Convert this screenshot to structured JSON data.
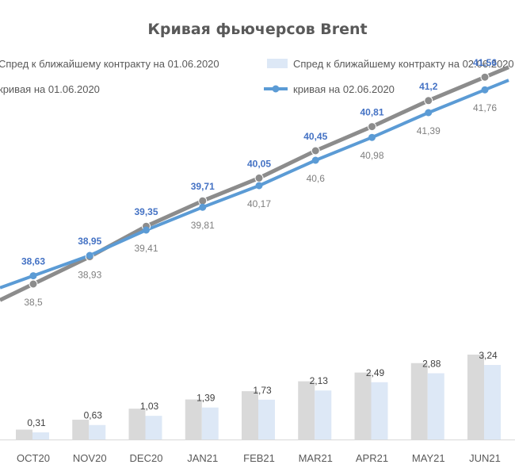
{
  "chart_data": {
    "type": "line+bar",
    "title": "Кривая фьючерсов Brent",
    "categories": [
      "OCT20",
      "NOV20",
      "DEC20",
      "JAN21",
      "FEB21",
      "MAR21",
      "APR21",
      "MAY21",
      "JUN21"
    ],
    "series": [
      {
        "name": "Спред к ближайшему контракту на 01.06.2020",
        "kind": "bar",
        "color": "#d9d9d9",
        "values": [
          0.43,
          0.86,
          1.34,
          1.74,
          2.1,
          2.53,
          2.91,
          3.32,
          3.69
        ],
        "labels_shown": false
      },
      {
        "name": "Спред к ближайшему контракту на 02.06.2020",
        "kind": "bar",
        "color": "#dde8f6",
        "values": [
          0.31,
          0.63,
          1.03,
          1.39,
          1.73,
          2.13,
          2.49,
          2.88,
          3.24
        ],
        "labels_shown": true
      },
      {
        "name": "кривая на 01.06.2020",
        "kind": "line",
        "color": "#8c8c8c",
        "values": [
          38.5,
          38.93,
          39.41,
          39.81,
          40.17,
          40.6,
          40.98,
          41.39,
          41.76
        ]
      },
      {
        "name": "кривая на 02.06.2020",
        "kind": "line",
        "color": "#5b9bd5",
        "values": [
          38.63,
          38.95,
          39.35,
          39.71,
          40.05,
          40.45,
          40.81,
          41.2,
          41.56
        ]
      }
    ],
    "legend": [
      {
        "label": "Спред к ближайшему контракту на  01.06.2020",
        "series": 0
      },
      {
        "label": "Спред к ближайшему контракту на  02.06.2020",
        "series": 1
      },
      {
        "label": "кривая на 01.06.2020",
        "series": 2
      },
      {
        "label": "кривая на 02.06.2020",
        "series": 3
      }
    ],
    "legend_position": "top"
  }
}
